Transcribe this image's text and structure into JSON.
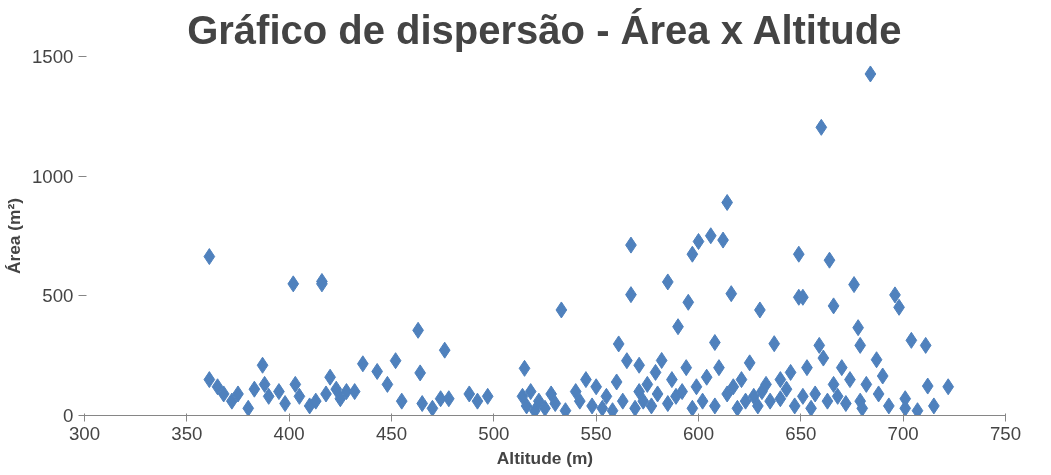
{
  "chart_data": {
    "type": "scatter",
    "title": "Gráfico de dispersão - Área x Altitude",
    "xlabel": "Altitude (m)",
    "ylabel": "Área (m²)",
    "x": [
      361,
      361,
      365,
      368,
      372,
      375,
      380,
      383,
      387,
      388,
      390,
      395,
      398,
      402,
      403,
      405,
      410,
      413,
      416,
      416,
      418,
      420,
      423,
      425,
      428,
      432,
      436,
      443,
      448,
      452,
      455,
      463,
      464,
      465,
      470,
      474,
      476,
      478,
      488,
      492,
      497,
      514,
      515,
      516,
      518,
      520,
      522,
      525,
      528,
      530,
      533,
      535,
      540,
      542,
      545,
      548,
      550,
      553,
      555,
      558,
      560,
      561,
      563,
      565,
      567,
      567,
      569,
      571,
      571,
      573,
      575,
      577,
      579,
      580,
      582,
      585,
      585,
      587,
      589,
      590,
      592,
      594,
      595,
      597,
      597,
      599,
      600,
      602,
      604,
      606,
      608,
      608,
      610,
      612,
      614,
      614,
      616,
      617,
      619,
      621,
      623,
      625,
      627,
      629,
      630,
      631,
      633,
      635,
      637,
      640,
      640,
      643,
      645,
      647,
      649,
      649,
      651,
      651,
      653,
      655,
      657,
      659,
      660,
      661,
      663,
      664,
      666,
      666,
      668,
      670,
      672,
      674,
      676,
      678,
      679,
      679,
      680,
      682,
      684,
      687,
      688,
      690,
      693,
      696,
      698,
      701,
      701,
      704,
      707,
      711,
      712,
      715,
      722
    ],
    "values": [
      664,
      150,
      120,
      90,
      60,
      90,
      30,
      110,
      210,
      130,
      80,
      100,
      50,
      550,
      130,
      80,
      40,
      60,
      560,
      550,
      90,
      160,
      110,
      70,
      100,
      100,
      216,
      184,
      130,
      229,
      60,
      356,
      178,
      50,
      30,
      70,
      273,
      70,
      90,
      60,
      80,
      80,
      197,
      40,
      100,
      20,
      60,
      30,
      90,
      50,
      441,
      20,
      100,
      60,
      150,
      40,
      120,
      30,
      80,
      20,
      140,
      299,
      60,
      229,
      712,
      505,
      30,
      210,
      100,
      60,
      130,
      40,
      180,
      90,
      230,
      558,
      50,
      150,
      80,
      371,
      100,
      200,
      473,
      30,
      674,
      120,
      727,
      60,
      160,
      751,
      305,
      40,
      200,
      733,
      890,
      90,
      509,
      120,
      30,
      150,
      60,
      220,
      80,
      40,
      441,
      100,
      130,
      60,
      300,
      150,
      70,
      110,
      180,
      40,
      674,
      494,
      80,
      494,
      200,
      30,
      90,
      293,
      1204,
      240,
      60,
      649,
      458,
      130,
      80,
      200,
      50,
      150,
      547,
      367,
      293,
      60,
      30,
      130,
      1427,
      233,
      90,
      165,
      40,
      504,
      452,
      30,
      70,
      314,
      20,
      293,
      123,
      40,
      120
    ],
    "color": "#4f81bd",
    "marker": "diamond",
    "xlim": [
      300,
      750
    ],
    "xticks": [
      300,
      350,
      400,
      450,
      500,
      550,
      600,
      650,
      700,
      750
    ],
    "ylim": [
      0,
      1500
    ],
    "yticks": [
      0,
      500,
      1000,
      1500
    ],
    "grid": false,
    "legend": false
  }
}
